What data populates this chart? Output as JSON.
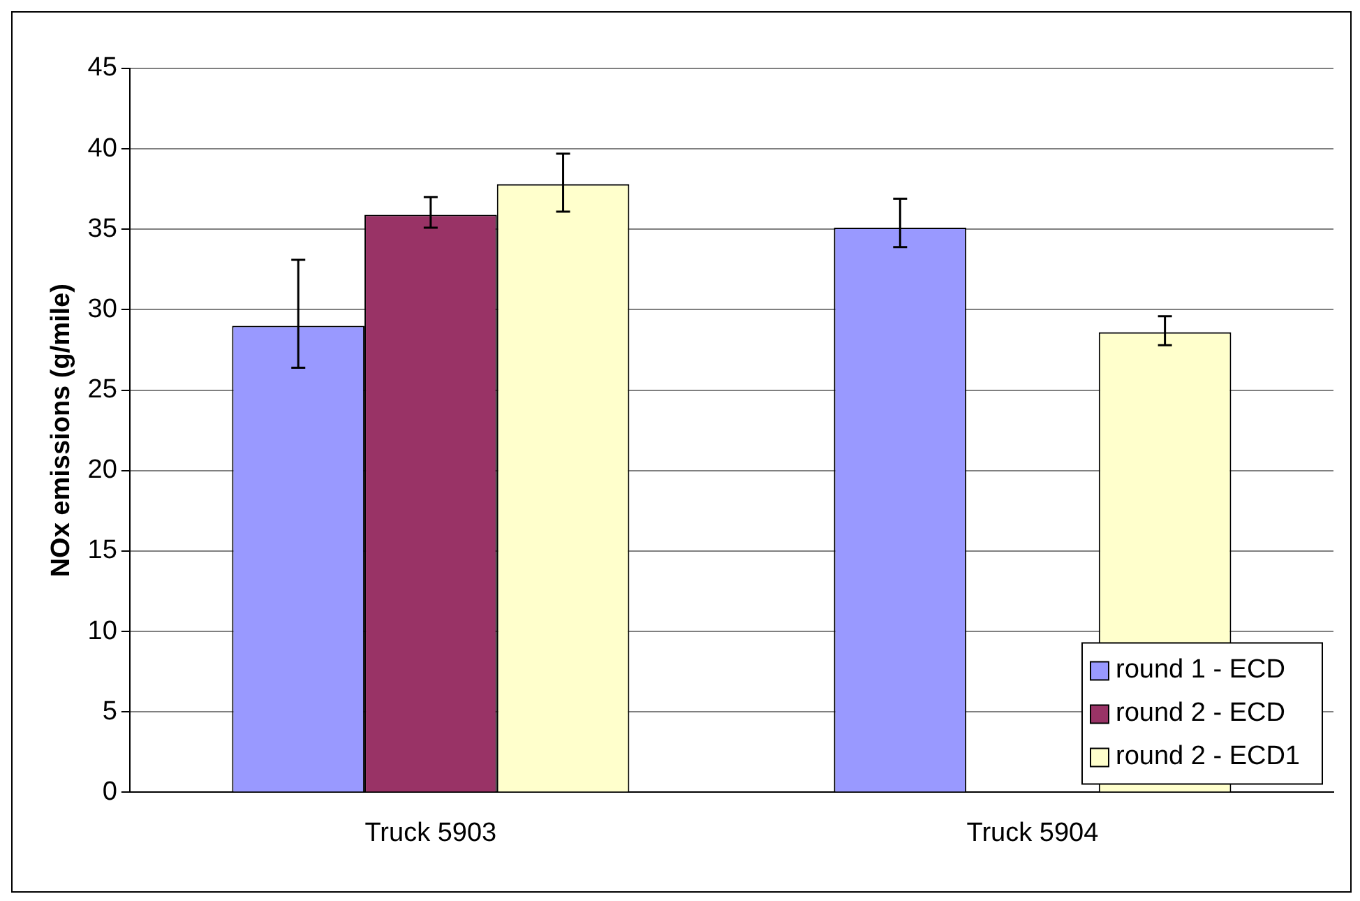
{
  "chart_data": {
    "type": "bar",
    "ylabel": "NOx emissions (g/mile)",
    "categories": [
      "Truck 5903",
      "Truck 5904"
    ],
    "series": [
      {
        "name": "round 1 - ECD",
        "color": "#9999ff",
        "values": [
          29.0,
          35.1
        ],
        "errors": [
          [
            26.4,
            33.1
          ],
          [
            33.9,
            36.9
          ]
        ]
      },
      {
        "name": "round 2 - ECD",
        "color": "#993366",
        "values": [
          35.9,
          null
        ],
        "errors": [
          [
            35.1,
            37.0
          ],
          null
        ]
      },
      {
        "name": "round 2 - ECD1",
        "color": "#ffffcc",
        "values": [
          37.8,
          28.6
        ],
        "errors": [
          [
            36.1,
            39.7
          ],
          [
            27.8,
            29.6
          ]
        ]
      }
    ],
    "ylim": [
      0,
      45
    ],
    "yticks": [
      0,
      5,
      10,
      15,
      20,
      25,
      30,
      35,
      40,
      45
    ],
    "grid": "y",
    "legend": "bottom right"
  }
}
